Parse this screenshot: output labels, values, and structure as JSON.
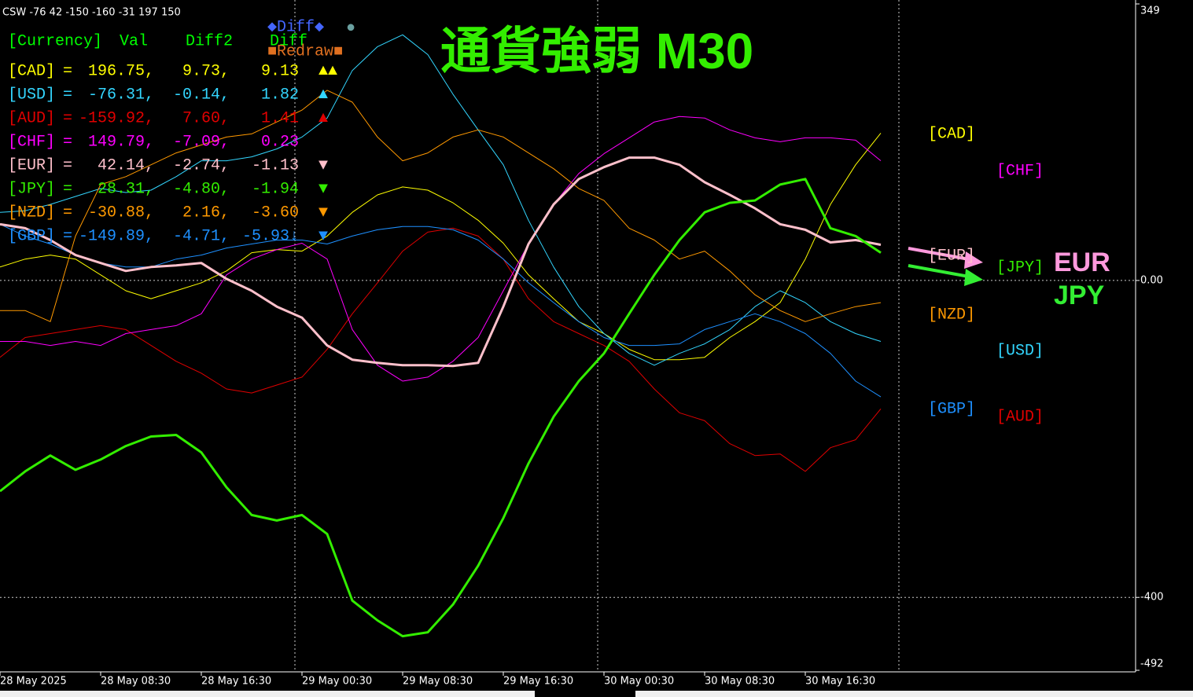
{
  "header": "CSW -76 42 -150 -160 -31 197 150",
  "panel": {
    "columns": [
      "[Currency]",
      "Val",
      "Diff2",
      "Diff"
    ],
    "buttons": [
      "◆Diff◆",
      "●",
      "■Redraw■"
    ],
    "rows": [
      [
        "=",
        "196.75,",
        "9.73,",
        "9.13",
        "▲▲"
      ],
      [
        "=",
        "-76.31,",
        "-0.14,",
        "1.82",
        "▲"
      ],
      [
        "=",
        "-159.92,",
        "7.60,",
        "1.41",
        "▲"
      ],
      [
        "=",
        "149.79,",
        "-7.09,",
        "0.23",
        ""
      ],
      [
        "=",
        "42.14,",
        "-2.74,",
        "-1.13",
        "▼"
      ],
      [
        "=",
        "28.31,",
        "-4.80,",
        "-1.94",
        "▼"
      ],
      [
        "=",
        "-30.88,",
        "2.16,",
        "-3.60",
        "▼"
      ],
      [
        "=",
        "-149.89,",
        "-4.71,",
        "-5.93↓",
        "▼"
      ]
    ]
  },
  "chart_data": {
    "type": "line",
    "title": "通貨強弱 M30",
    "categories": [
      "28 May 2025",
      null,
      null,
      null,
      "28 May 08:30",
      null,
      null,
      null,
      "28 May 16:30",
      null,
      null,
      null,
      "29 May 00:30",
      null,
      null,
      null,
      "29 May 08:30",
      null,
      null,
      null,
      "29 May 16:30",
      null,
      null,
      null,
      "30 May 00:30",
      null,
      null,
      null,
      "30 May 08:30",
      null,
      null,
      null,
      "30 May 16:30",
      null,
      null,
      null
    ],
    "ylim": [
      -492,
      349
    ],
    "yticks": [
      349,
      {
        "value": 0,
        "label": "0.00"
      },
      -400,
      -492
    ],
    "grid": true,
    "series": [
      {
        "name": "[CAD]",
        "color": "#ffff00",
        "line_width": 1,
        "values": [
          17,
          27,
          32,
          27,
          7,
          -13,
          -23,
          -13,
          -3,
          12,
          35,
          39,
          37,
          56,
          86,
          108,
          118,
          114,
          98,
          76,
          47,
          7,
          -23,
          -52,
          -67,
          -87,
          -100,
          -100,
          -97,
          -72,
          -52,
          -28,
          27,
          96,
          146,
          186
        ]
      },
      {
        "name": "[USD]",
        "color": "#33d6ff",
        "line_width": 1,
        "values": [
          86,
          88,
          96,
          106,
          116,
          111,
          114,
          131,
          151,
          151,
          156,
          166,
          181,
          205,
          265,
          295,
          310,
          285,
          235,
          190,
          146,
          76,
          17,
          -33,
          -67,
          -92,
          -107,
          -92,
          -80,
          -62,
          -33,
          -13,
          -28,
          -52,
          -67,
          -77
        ]
      },
      {
        "name": "[AUD]",
        "color": "#e00000",
        "line_width": 1,
        "values": [
          -97,
          -72,
          -67,
          -62,
          -57,
          -62,
          -82,
          -102,
          -117,
          -137,
          -142,
          -132,
          -122,
          -87,
          -42,
          -3,
          37,
          61,
          66,
          56,
          27,
          -23,
          -52,
          -67,
          -82,
          -102,
          -137,
          -167,
          -177,
          -206,
          -221,
          -219,
          -241,
          -211,
          -201,
          -162
        ]
      },
      {
        "name": "[CHF]",
        "color": "#ff00ff",
        "line_width": 1,
        "values": [
          -77,
          -77,
          -82,
          -77,
          -82,
          -67,
          -62,
          -57,
          -42,
          7,
          27,
          39,
          47,
          27,
          -62,
          -107,
          -127,
          -122,
          -102,
          -72,
          -13,
          46,
          96,
          135,
          160,
          180,
          200,
          207,
          205,
          190,
          180,
          175,
          180,
          180,
          177,
          151
        ]
      },
      {
        "name": "[EUR]",
        "color": "#ffc0cb",
        "line_width": 3,
        "values": [
          71,
          66,
          51,
          32,
          22,
          12,
          17,
          19,
          22,
          2,
          -13,
          -33,
          -47,
          -82,
          -100,
          -104,
          -107,
          -107,
          -108,
          -104,
          -33,
          46,
          96,
          128,
          143,
          155,
          155,
          146,
          124,
          108,
          91,
          71,
          64,
          48,
          51,
          45
        ]
      },
      {
        "name": "[JPY]",
        "color": "#33ee00",
        "line_width": 3,
        "values": [
          -266,
          -241,
          -221,
          -239,
          -226,
          -209,
          -197,
          -195,
          -217,
          -261,
          -296,
          -303,
          -296,
          -320,
          -404,
          -429,
          -449,
          -444,
          -409,
          -360,
          -300,
          -231,
          -172,
          -127,
          -92,
          -42,
          7,
          51,
          86,
          98,
          101,
          121,
          128,
          66,
          56,
          35
        ]
      },
      {
        "name": "[NZD]",
        "color": "#ff9900",
        "line_width": 1,
        "values": [
          -38,
          -38,
          -52,
          56,
          121,
          131,
          146,
          161,
          171,
          181,
          185,
          200,
          215,
          240,
          225,
          181,
          151,
          161,
          181,
          190,
          181,
          161,
          141,
          116,
          101,
          66,
          51,
          27,
          37,
          12,
          -18,
          -38,
          -52,
          -42,
          -33,
          -28
        ]
      },
      {
        "name": "[GBP]",
        "color": "#1e90ff",
        "line_width": 1,
        "values": [
          71,
          56,
          46,
          32,
          22,
          17,
          17,
          27,
          32,
          41,
          46,
          51,
          51,
          46,
          56,
          64,
          68,
          68,
          64,
          51,
          27,
          -3,
          -28,
          -52,
          -72,
          -82,
          -82,
          -80,
          -62,
          -52,
          -42,
          -52,
          -67,
          -92,
          -127,
          -147
        ]
      }
    ],
    "annotations": [
      {
        "text": "EUR",
        "color": "#ff99dd"
      },
      {
        "text": "JPY",
        "color": "#33ee33"
      }
    ]
  }
}
